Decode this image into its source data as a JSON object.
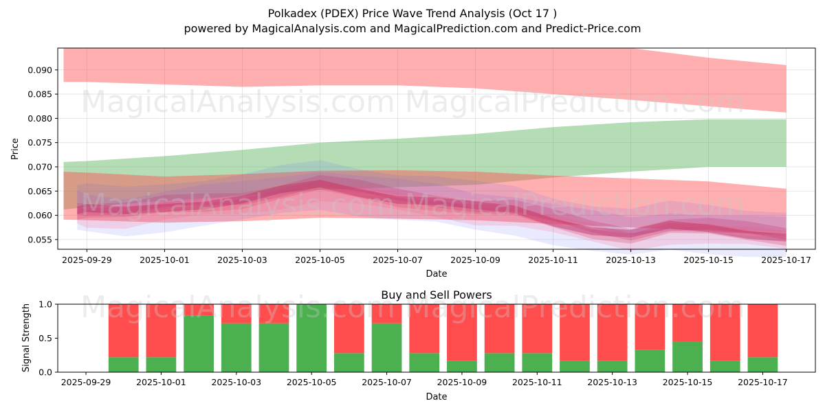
{
  "figure": {
    "title_line1": "Polkadex (PDEX) Price Wave Trend Analysis (Oct 17 )",
    "title_line2": "powered by MagicalAnalysis.com and MagicalPrediction.com and Predict-Price.com",
    "watermarks": [
      "MagicalAnalysis.com",
      "MagicalPrediction.com"
    ]
  },
  "colors": {
    "red_band": "#ff4d4d",
    "green_band": "#4caf50",
    "blue_wave": "#5555ff",
    "buy": "#4caf50",
    "sell": "#ff4d4d"
  },
  "chart_data": [
    {
      "type": "area",
      "title": "",
      "xlabel": "Date",
      "ylabel": "Price",
      "x_ticks": [
        "2025-09-29",
        "2025-10-01",
        "2025-10-03",
        "2025-10-05",
        "2025-10-07",
        "2025-10-09",
        "2025-10-11",
        "2025-10-13",
        "2025-10-15",
        "2025-10-17"
      ],
      "y_ticks": [
        "0.055",
        "0.060",
        "0.065",
        "0.070",
        "0.075",
        "0.080",
        "0.085",
        "0.090"
      ],
      "ylim": [
        0.053,
        0.0945
      ],
      "x_range_days": [
        -0.75,
        18.75
      ],
      "bands": [
        {
          "name": "upper red band",
          "color": "red",
          "x": [
            -0.6,
            0,
            2,
            4,
            6,
            8,
            10,
            12,
            14,
            16,
            18.0
          ],
          "upper": [
            0.095,
            0.095,
            0.095,
            0.095,
            0.095,
            0.095,
            0.095,
            0.095,
            0.0945,
            0.0925,
            0.091
          ],
          "lower": [
            0.0875,
            0.0875,
            0.087,
            0.0865,
            0.0868,
            0.0868,
            0.0862,
            0.085,
            0.0838,
            0.0825,
            0.0812
          ]
        },
        {
          "name": "green band",
          "color": "green",
          "x": [
            -0.6,
            0,
            2,
            4,
            6,
            8,
            10,
            12,
            14,
            16,
            18.0
          ],
          "upper": [
            0.071,
            0.0712,
            0.0722,
            0.0735,
            0.075,
            0.0758,
            0.0768,
            0.0782,
            0.0792,
            0.0798,
            0.0798
          ],
          "lower": [
            0.0612,
            0.0617,
            0.063,
            0.064,
            0.0653,
            0.0658,
            0.0663,
            0.0678,
            0.069,
            0.07,
            0.07
          ]
        },
        {
          "name": "lower red band",
          "color": "red",
          "x": [
            -0.6,
            0,
            2,
            4,
            6,
            8,
            10,
            12,
            14,
            16,
            18.0
          ],
          "upper": [
            0.069,
            0.0688,
            0.068,
            0.0685,
            0.0692,
            0.0693,
            0.069,
            0.0682,
            0.0676,
            0.067,
            0.0655
          ],
          "lower": [
            0.0591,
            0.059,
            0.0585,
            0.0588,
            0.0595,
            0.0593,
            0.059,
            0.0582,
            0.0575,
            0.0568,
            0.0557
          ]
        }
      ],
      "waves": [
        {
          "name": "price wave",
          "x": [
            -0.25,
            0,
            1,
            2,
            3,
            4,
            5,
            6,
            7,
            8,
            9,
            10,
            11,
            12,
            13,
            14,
            15,
            16,
            17,
            18.0
          ],
          "values": [
            0.0612,
            0.061,
            0.0606,
            0.0618,
            0.0626,
            0.0633,
            0.0648,
            0.0662,
            0.065,
            0.0637,
            0.0628,
            0.0615,
            0.061,
            0.059,
            0.0572,
            0.056,
            0.0575,
            0.0572,
            0.0565,
            0.0558
          ]
        }
      ]
    },
    {
      "type": "bar",
      "title": "Buy and Sell Powers",
      "xlabel": "Date",
      "ylabel": "Signal Strength",
      "x_ticks": [
        "2025-09-29",
        "2025-10-01",
        "2025-10-03",
        "2025-10-05",
        "2025-10-07",
        "2025-10-09",
        "2025-10-11",
        "2025-10-13",
        "2025-10-15",
        "2025-10-17"
      ],
      "y_ticks": [
        "0.0",
        "0.5",
        "1.0"
      ],
      "ylim": [
        0,
        1.0
      ],
      "x_range_days": [
        -0.75,
        19.4
      ],
      "categories": [
        "2025-09-30",
        "2025-10-01",
        "2025-10-02",
        "2025-10-03",
        "2025-10-04",
        "2025-10-05",
        "2025-10-06",
        "2025-10-07",
        "2025-10-08",
        "2025-10-09",
        "2025-10-10",
        "2025-10-11",
        "2025-10-12",
        "2025-10-13",
        "2025-10-14",
        "2025-10-15",
        "2025-10-16",
        "2025-10-17"
      ],
      "series": [
        {
          "name": "Buy",
          "color": "green",
          "values": [
            0.22,
            0.22,
            0.83,
            0.72,
            0.72,
            1.0,
            0.28,
            0.72,
            0.28,
            0.17,
            0.28,
            0.28,
            0.17,
            0.17,
            0.33,
            0.45,
            0.17,
            0.22
          ]
        },
        {
          "name": "Sell",
          "color": "red",
          "values": [
            0.78,
            0.78,
            0.17,
            0.28,
            0.28,
            0.0,
            0.72,
            0.28,
            0.72,
            0.83,
            0.72,
            0.72,
            0.83,
            0.83,
            0.67,
            0.55,
            0.83,
            0.78
          ]
        }
      ]
    }
  ]
}
